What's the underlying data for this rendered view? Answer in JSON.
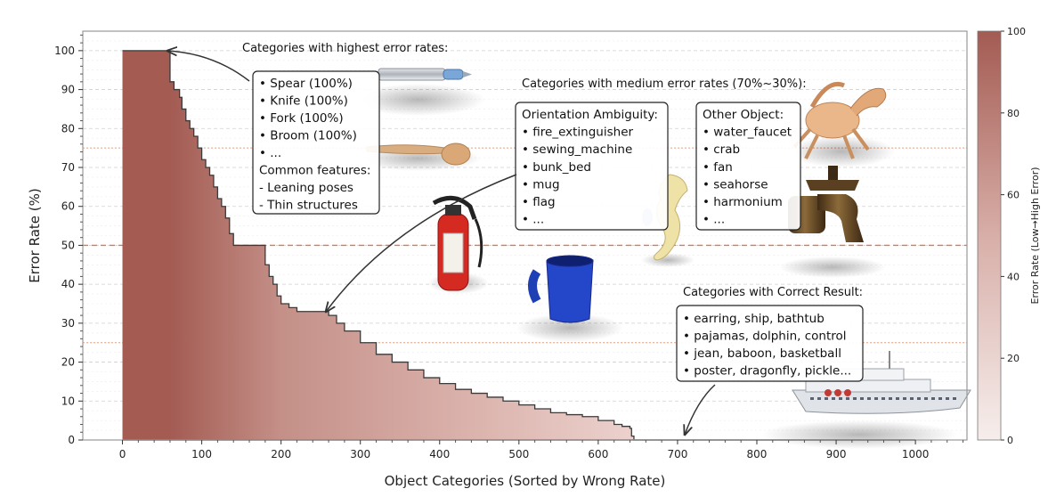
{
  "chart_data": {
    "type": "area",
    "xlabel": "Object Categories (Sorted by Wrong Rate)",
    "ylabel": "Error Rate (%)",
    "xlim": [
      -50,
      1065
    ],
    "ylim": [
      0,
      105
    ],
    "xticks": [
      0,
      100,
      200,
      300,
      400,
      500,
      600,
      700,
      800,
      900,
      1000
    ],
    "yticks": [
      0,
      10,
      20,
      30,
      40,
      50,
      60,
      70,
      80,
      90,
      100
    ],
    "grid": "horizontal dashed",
    "reference_lines": [
      {
        "y": 50,
        "style": "dashed",
        "color": "#e8734a"
      },
      {
        "y": 75,
        "style": "dotted",
        "color": "#e8a080"
      },
      {
        "y": 25,
        "style": "dotted",
        "color": "#e8a080"
      }
    ],
    "series": [
      {
        "x": [
          0,
          57,
          60,
          65,
          72,
          75,
          80,
          85,
          90,
          95,
          100,
          105,
          110,
          115,
          120,
          125,
          130,
          135,
          140,
          150,
          160,
          170,
          178,
          180,
          185,
          190,
          195,
          200,
          210,
          220,
          225,
          230,
          235,
          240,
          245,
          250,
          260,
          270,
          280,
          300,
          320,
          340,
          360,
          380,
          400,
          420,
          440,
          460,
          480,
          500,
          520,
          540,
          560,
          580,
          600,
          620,
          630,
          640,
          642,
          645,
          700,
          800,
          900,
          1000
        ],
        "y": [
          100,
          100,
          92,
          90,
          88,
          85,
          82,
          80,
          78,
          75,
          72,
          70,
          68,
          65,
          62,
          60,
          57,
          53,
          50,
          50,
          50,
          50,
          50,
          45,
          42,
          40,
          37,
          35,
          34,
          33,
          33,
          33,
          33,
          33,
          33,
          33,
          32,
          30,
          28,
          25,
          22,
          20,
          18,
          16,
          14.5,
          13,
          12,
          11,
          10,
          9,
          8,
          7,
          6.5,
          6,
          5,
          4,
          3.5,
          3,
          1,
          0,
          0,
          0,
          0,
          0
        ]
      }
    ],
    "colorbar": {
      "label": "Error Rate (Low→High Error)",
      "min": 0,
      "max": 100,
      "ticks": [
        0,
        20,
        40,
        60,
        80,
        100
      ],
      "color_low": "#f6eeec",
      "color_high": "#a35b52"
    }
  },
  "annotations": {
    "highest": {
      "heading": "Categories with highest error rates:",
      "lines": [
        "• Spear (100%)",
        "• Knife (100%)",
        "• Fork (100%)",
        "• Broom (100%)",
        "• ...",
        "Common features:",
        "- Leaning poses",
        "- Thin structures"
      ]
    },
    "medium": {
      "heading": "Categories with medium error rates (70%~30%):",
      "orientation_lines": [
        "Orientation Ambiguity:",
        "• fire_extinguisher",
        "• sewing_machine",
        "• bunk_bed",
        "• mug",
        "• flag",
        "• ..."
      ],
      "other_lines": [
        "Other Object:",
        "• water_faucet",
        "• crab",
        "• fan",
        "• seahorse",
        "• harmonium",
        "• ..."
      ]
    },
    "correct": {
      "heading": "Categories with Correct Result:",
      "lines": [
        "• earring, ship, bathtub",
        "• pajamas, dolphin, control",
        "• jean, baboon, basketball",
        "• poster, dragonfly, pickle..."
      ]
    }
  },
  "images": [
    "spear",
    "spoon",
    "fire-extinguisher",
    "mug",
    "seahorse",
    "crab",
    "water-faucet",
    "ship"
  ]
}
